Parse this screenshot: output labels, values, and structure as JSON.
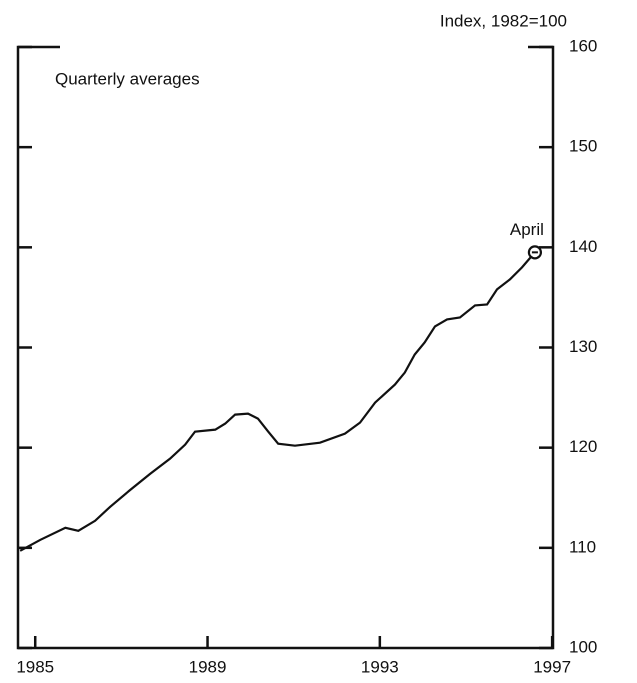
{
  "chart_data": {
    "type": "line",
    "y_axis_label": "Index, 1982=100",
    "subtitle": "Quarterly averages",
    "annotation": "April",
    "x": [
      1984.65,
      1985.12,
      1985.7,
      1986.0,
      1986.39,
      1986.74,
      1987.21,
      1987.67,
      1988.13,
      1988.48,
      1988.71,
      1989.18,
      1989.41,
      1989.64,
      1989.94,
      1990.17,
      1990.41,
      1990.64,
      1991.03,
      1991.61,
      1992.19,
      1992.54,
      1992.89,
      1993.35,
      1993.58,
      1993.81,
      1994.04,
      1994.28,
      1994.56,
      1994.86,
      1995.21,
      1995.49,
      1995.72,
      1996.02,
      1996.3,
      1996.6
    ],
    "series": [
      {
        "color": "#111111",
        "values": [
          109.7,
          110.8,
          112.0,
          111.7,
          112.7,
          114.1,
          115.8,
          117.4,
          118.9,
          120.3,
          121.6,
          121.8,
          122.4,
          123.3,
          123.4,
          122.9,
          121.6,
          120.4,
          120.2,
          120.5,
          121.4,
          122.5,
          124.5,
          126.3,
          127.5,
          129.3,
          130.5,
          132.1,
          132.8,
          133.0,
          134.2,
          134.3,
          135.8,
          136.8,
          138.0,
          139.5
        ]
      }
    ],
    "xlim": [
      1984.6,
      1997.02
    ],
    "xticks": [
      1985,
      1989,
      1993,
      1997
    ],
    "ylim": [
      100,
      160
    ],
    "yticks": [
      100,
      110,
      120,
      130,
      140,
      150,
      160
    ]
  }
}
